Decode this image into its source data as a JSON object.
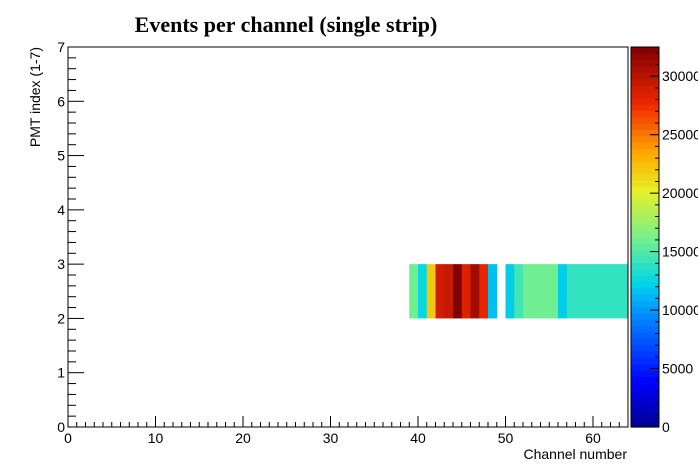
{
  "chart_data": {
    "type": "heatmap",
    "title": "Events per channel (single strip)",
    "xlabel": "Channel number",
    "ylabel": "PMT index (1-7)",
    "xlim": [
      0,
      64
    ],
    "ylim": [
      0,
      7
    ],
    "x_ticks": [
      0,
      10,
      20,
      30,
      40,
      50,
      60
    ],
    "y_ticks": [
      0,
      1,
      2,
      3,
      4,
      5,
      6,
      7
    ],
    "z_range": [
      0,
      3250
    ],
    "z_ticks": [
      0,
      500,
      1000,
      1500,
      2000,
      2500,
      3000
    ],
    "z_tick_labels": [
      "0",
      "5000",
      "10000",
      "15000",
      "20000",
      "25000",
      "30000"
    ],
    "colormap": "jet",
    "row_y": [
      2,
      3
    ],
    "cells": [
      {
        "x": 39,
        "z": 1600
      },
      {
        "x": 40,
        "z": 1250
      },
      {
        "x": 41,
        "z": 2200
      },
      {
        "x": 42,
        "z": 2900
      },
      {
        "x": 43,
        "z": 2950
      },
      {
        "x": 44,
        "z": 3250
      },
      {
        "x": 45,
        "z": 2850
      },
      {
        "x": 46,
        "z": 3100
      },
      {
        "x": 47,
        "z": 2800
      },
      {
        "x": 48,
        "z": 1150
      },
      {
        "x": 50,
        "z": 1200
      },
      {
        "x": 51,
        "z": 1450
      },
      {
        "x": 52,
        "z": 1600
      },
      {
        "x": 53,
        "z": 1600
      },
      {
        "x": 54,
        "z": 1600
      },
      {
        "x": 55,
        "z": 1600
      },
      {
        "x": 56,
        "z": 1200
      },
      {
        "x": 57,
        "z": 1400
      },
      {
        "x": 58,
        "z": 1400
      },
      {
        "x": 59,
        "z": 1400
      },
      {
        "x": 60,
        "z": 1400
      },
      {
        "x": 61,
        "z": 1400
      },
      {
        "x": 62,
        "z": 1400
      },
      {
        "x": 63,
        "z": 1400
      }
    ]
  }
}
